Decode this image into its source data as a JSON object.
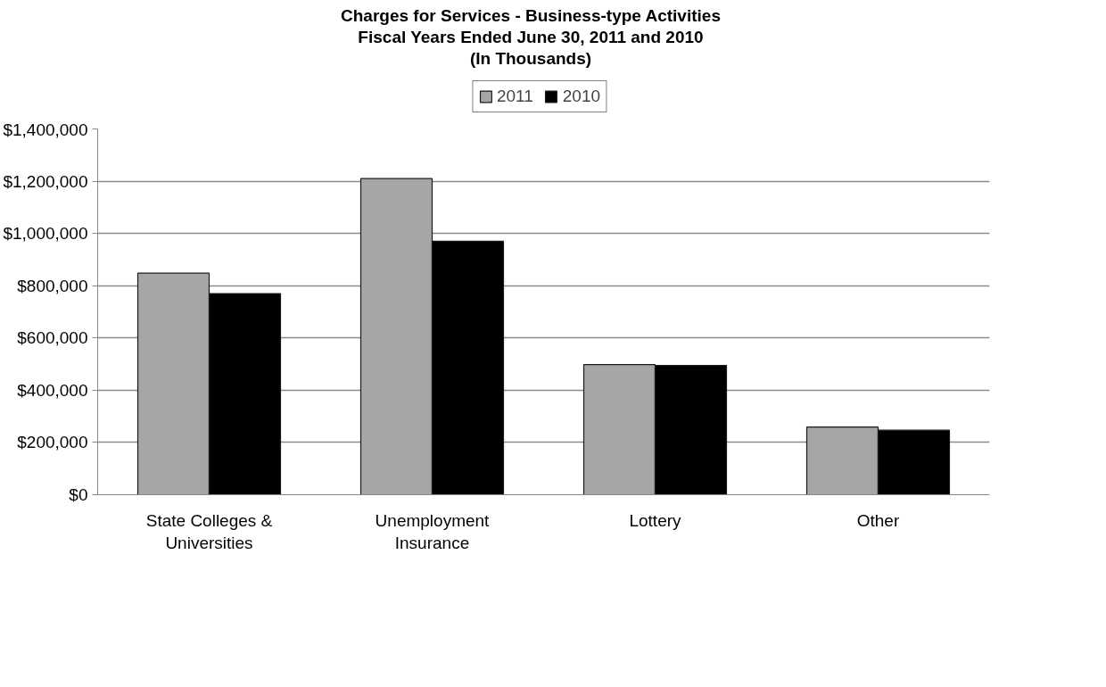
{
  "chart_data": {
    "type": "bar",
    "title": "Charges for Services - Business-type  Activities",
    "subtitle": "Fiscal Years Ended June 30, 2011 and 2010\n(In Thousands)",
    "categories": [
      "State Colleges &\nUniversities",
      "Unemployment\nInsurance",
      "Lottery",
      "Other"
    ],
    "series": [
      {
        "name": "2011",
        "color": "#a6a6a6",
        "values": [
          848000,
          1210000,
          498000,
          259000
        ]
      },
      {
        "name": "2010",
        "color": "#000000",
        "values": [
          770000,
          970000,
          495000,
          247000
        ]
      }
    ],
    "ylim": [
      0,
      1400000
    ],
    "yticks": [
      {
        "value": 0,
        "label": "$0"
      },
      {
        "value": 200000,
        "label": "$200,000"
      },
      {
        "value": 400000,
        "label": "$400,000"
      },
      {
        "value": 600000,
        "label": "$600,000"
      },
      {
        "value": 800000,
        "label": "$800,000"
      },
      {
        "value": 1000000,
        "label": "$1,000,000"
      },
      {
        "value": 1200000,
        "label": "$1,200,000"
      },
      {
        "value": 1400000,
        "label": "$1,400,000"
      }
    ],
    "grid": "y",
    "legend": "top"
  }
}
